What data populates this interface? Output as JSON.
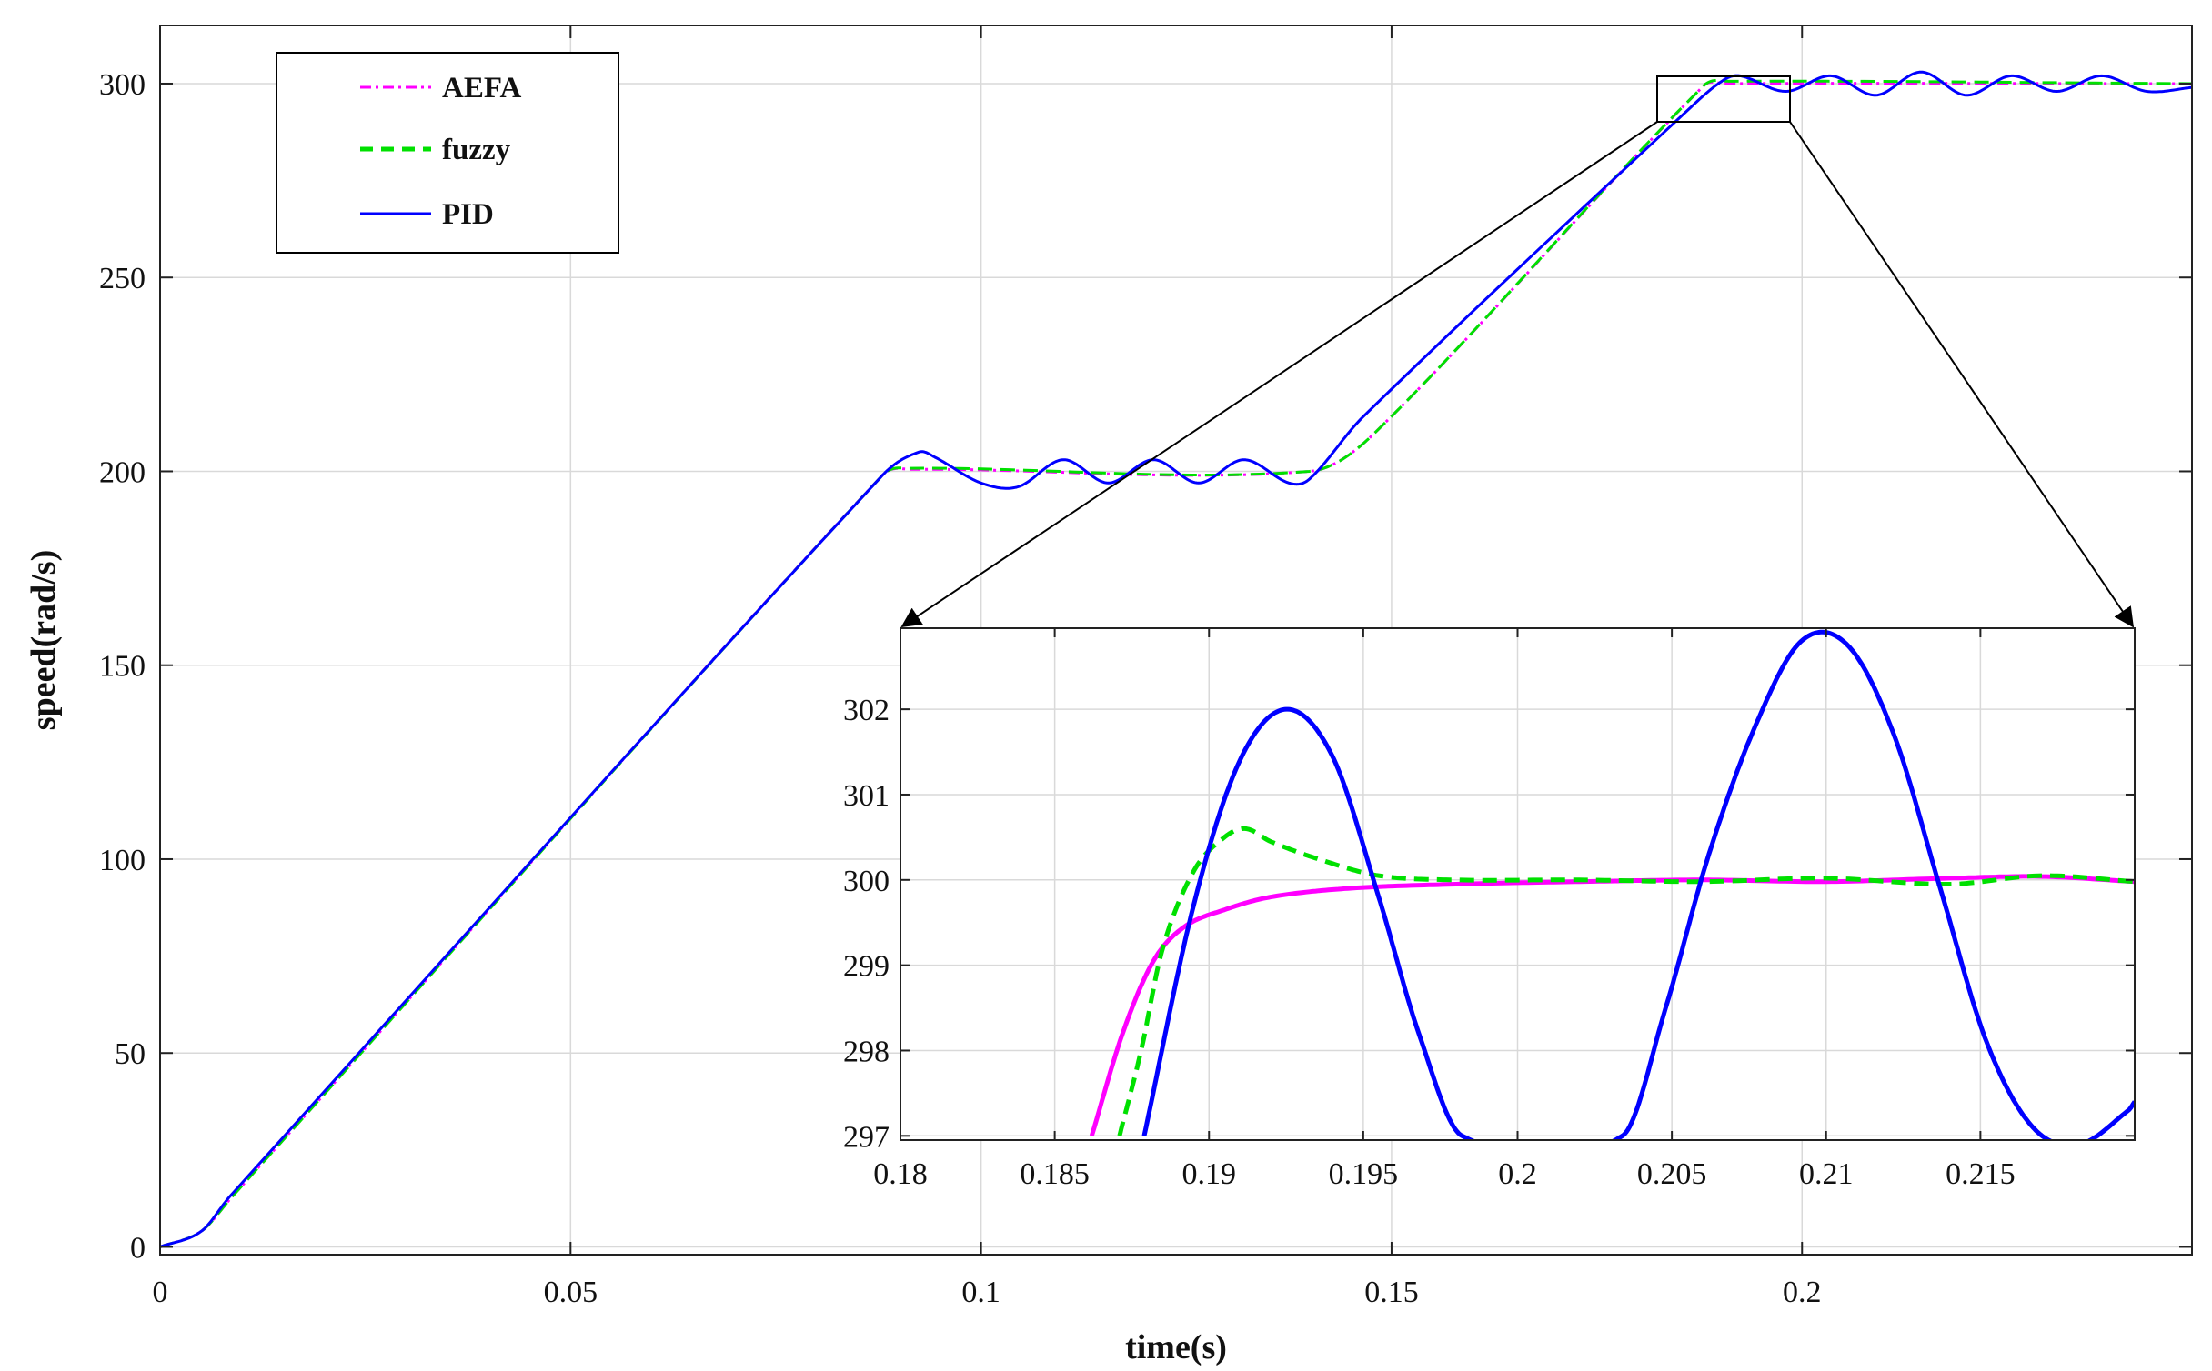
{
  "chart_data": [
    {
      "type": "line",
      "title": "",
      "xlabel": "time(s)",
      "ylabel": "speed(rad/s)",
      "xlim": [
        0,
        0.2475
      ],
      "ylim": [
        -2,
        315
      ],
      "xticks": [
        0,
        0.05,
        0.1,
        0.15,
        0.2
      ],
      "xtick_labels": [
        "0",
        "0.05",
        "0.1",
        "0.15",
        "0.2"
      ],
      "yticks": [
        0,
        50,
        100,
        150,
        200,
        250,
        300
      ],
      "ytick_labels": [
        "0",
        "50",
        "100",
        "150",
        "200",
        "250",
        "300"
      ],
      "grid": true,
      "legend_position": "top-left",
      "series": [
        {
          "name": "AEFA",
          "color": "#ff00ff",
          "style": "dash-dot",
          "x": [
            0,
            0.005,
            0.0088,
            0.088,
            0.0915,
            0.14,
            0.148,
            0.188,
            0.1905,
            0.2475
          ],
          "y": [
            0,
            4,
            13,
            199,
            200.5,
            200,
            210,
            299.4,
            300,
            300
          ]
        },
        {
          "name": "fuzzy",
          "color": "#00e000",
          "style": "dashed",
          "x": [
            0,
            0.005,
            0.0088,
            0.088,
            0.0912,
            0.14,
            0.148,
            0.188,
            0.1912,
            0.2475
          ],
          "y": [
            0,
            4,
            13,
            199,
            200.8,
            200,
            210,
            299.4,
            300.6,
            300
          ]
        },
        {
          "name": "PID",
          "color": "#0000ff",
          "style": "solid",
          "x": [
            0,
            0.005,
            0.0085,
            0.088,
            0.0925,
            0.0945,
            0.1,
            0.1045,
            0.11,
            0.1155,
            0.121,
            0.1265,
            0.132,
            0.1375,
            0.14,
            0.1465,
            0.1865,
            0.1905,
            0.1925,
            0.198,
            0.2035,
            0.209,
            0.2145,
            0.22,
            0.2255,
            0.231,
            0.2365,
            0.242,
            0.2475
          ],
          "y": [
            0,
            4,
            13,
            199,
            205,
            203.5,
            197,
            196,
            203,
            197,
            203,
            197,
            203,
            197,
            198,
            214,
            294,
            301,
            302,
            298,
            302,
            297,
            303,
            297,
            302,
            298,
            302,
            298,
            299
          ]
        }
      ]
    },
    {
      "type": "line",
      "title": "",
      "xlim": [
        0.18,
        0.22
      ],
      "ylim": [
        296.95,
        302.95
      ],
      "xticks": [
        0.18,
        0.185,
        0.19,
        0.195,
        0.2,
        0.205,
        0.21,
        0.215
      ],
      "xtick_labels": [
        "0.18",
        "0.185",
        "0.19",
        "0.195",
        "0.2",
        "0.205",
        "0.21",
        "0.215"
      ],
      "yticks": [
        297,
        298,
        299,
        300,
        301,
        302
      ],
      "ytick_labels": [
        "297",
        "298",
        "299",
        "300",
        "301",
        "302"
      ],
      "grid": true,
      "series": [
        {
          "name": "AEFA",
          "color": "#ff00ff",
          "style": "solid",
          "x": [
            0.1862,
            0.1872,
            0.1882,
            0.1892,
            0.1905,
            0.192,
            0.1945,
            0.198,
            0.202,
            0.206,
            0.21,
            0.214,
            0.217,
            0.22
          ],
          "y": [
            297,
            298.2,
            299.05,
            299.45,
            299.65,
            299.8,
            299.9,
            299.95,
            299.98,
            300,
            299.98,
            300.02,
            300.04,
            299.98
          ]
        },
        {
          "name": "fuzzy",
          "color": "#00e000",
          "style": "dashed",
          "x": [
            0.1871,
            0.1878,
            0.1885,
            0.1895,
            0.1905,
            0.1912,
            0.192,
            0.1935,
            0.1955,
            0.198,
            0.202,
            0.206,
            0.21,
            0.214,
            0.217,
            0.22
          ],
          "y": [
            297,
            298,
            299.2,
            300.1,
            300.5,
            300.6,
            300.45,
            300.25,
            300.05,
            300,
            300,
            299.98,
            300.02,
            299.95,
            300.05,
            299.98
          ]
        },
        {
          "name": "PID",
          "color": "#0000ff",
          "style": "solid",
          "x": [
            0.1879,
            0.1895,
            0.191,
            0.1925,
            0.194,
            0.1955,
            0.1968,
            0.1982,
            0.2034,
            0.2048,
            0.2062,
            0.2077,
            0.2092,
            0.2107,
            0.2122,
            0.2137,
            0.2152,
            0.2167,
            0.2182,
            0.2198,
            0.22
          ],
          "y": [
            297,
            299.7,
            301.4,
            302,
            301.45,
            299.8,
            298.2,
            297,
            297,
            298.5,
            300.3,
            301.8,
            302.8,
            302.75,
            301.7,
            299.9,
            298.1,
            297.1,
            296.9,
            297.3,
            297.4
          ]
        }
      ]
    }
  ]
}
